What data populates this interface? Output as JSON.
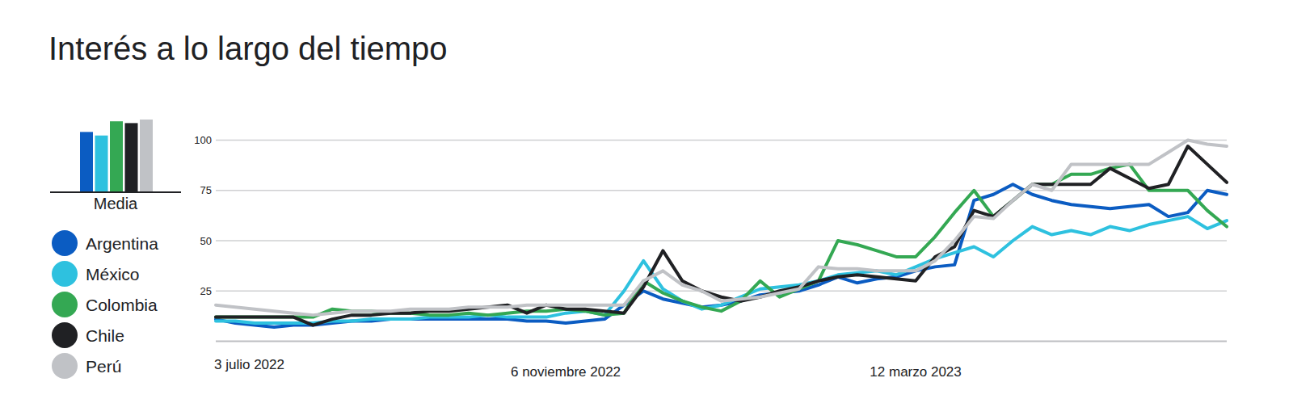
{
  "chart_data": {
    "type": "line",
    "title": "Interés a lo largo del tiempo",
    "average_label": "Media",
    "categories": [
      "3 julio 2022",
      null,
      null,
      null,
      null,
      null,
      null,
      null,
      null,
      null,
      null,
      null,
      null,
      null,
      null,
      null,
      null,
      null,
      "6 noviembre 2022",
      null,
      null,
      null,
      null,
      null,
      null,
      null,
      null,
      null,
      null,
      null,
      null,
      null,
      null,
      null,
      null,
      null,
      "12 marzo 2023",
      null,
      null,
      null,
      null,
      null,
      null,
      null,
      null,
      null,
      null,
      null,
      null,
      null,
      null,
      null,
      null
    ],
    "ylim": [
      0,
      100
    ],
    "yticks": [
      25,
      50,
      75,
      100
    ],
    "grid": true,
    "legend": "left",
    "series": [
      {
        "name": "Argentina",
        "color": "#0b5cc2",
        "average": 34,
        "values": [
          11,
          9,
          8,
          7,
          8,
          8,
          9,
          10,
          10,
          11,
          11,
          11,
          11,
          11,
          11,
          11,
          10,
          10,
          9,
          10,
          11,
          18,
          25,
          21,
          19,
          17,
          18,
          20,
          23,
          24,
          25,
          28,
          32,
          29,
          31,
          32,
          35,
          37,
          38,
          70,
          73,
          78,
          73,
          70,
          68,
          67,
          66,
          67,
          68,
          62,
          64,
          75,
          73
        ]
      },
      {
        "name": "México",
        "color": "#2ec1df",
        "average": 32,
        "values": [
          10,
          10,
          9,
          9,
          9,
          9,
          10,
          10,
          11,
          11,
          11,
          12,
          12,
          12,
          13,
          12,
          12,
          12,
          14,
          15,
          13,
          25,
          40,
          26,
          20,
          16,
          18,
          22,
          26,
          27,
          28,
          30,
          33,
          34,
          35,
          33,
          37,
          41,
          44,
          47,
          42,
          50,
          57,
          53,
          55,
          53,
          57,
          55,
          58,
          60,
          62,
          56,
          60
        ]
      },
      {
        "name": "Colombia",
        "color": "#34a853",
        "average": 40,
        "values": [
          12,
          12,
          12,
          12,
          12,
          12,
          16,
          15,
          15,
          14,
          14,
          13,
          13,
          14,
          13,
          14,
          15,
          15,
          16,
          15,
          13,
          14,
          30,
          24,
          20,
          17,
          15,
          20,
          30,
          22,
          26,
          30,
          50,
          48,
          45,
          42,
          42,
          52,
          64,
          75,
          62,
          70,
          78,
          78,
          83,
          83,
          86,
          88,
          75,
          75,
          75,
          65,
          57
        ]
      },
      {
        "name": "Chile",
        "color": "#202124",
        "average": 39,
        "values": [
          12,
          12,
          12,
          12,
          12,
          8,
          11,
          13,
          13,
          14,
          14,
          15,
          15,
          16,
          17,
          18,
          14,
          18,
          16,
          16,
          15,
          14,
          27,
          45,
          30,
          25,
          22,
          20,
          22,
          25,
          27,
          30,
          32,
          33,
          32,
          31,
          30,
          42,
          47,
          65,
          62,
          70,
          78,
          78,
          78,
          78,
          86,
          81,
          76,
          78,
          97,
          88,
          79
        ]
      },
      {
        "name": "Perú",
        "color": "#c0c2c6",
        "average": 41,
        "values": [
          18,
          17,
          16,
          15,
          14,
          13,
          14,
          15,
          15,
          15,
          16,
          16,
          16,
          17,
          17,
          17,
          18,
          18,
          18,
          18,
          18,
          18,
          30,
          35,
          28,
          25,
          20,
          21,
          22,
          24,
          26,
          37,
          36,
          36,
          35,
          35,
          35,
          40,
          50,
          62,
          61,
          70,
          78,
          75,
          88,
          88,
          88,
          88,
          88,
          94,
          100,
          98,
          97
        ]
      }
    ]
  }
}
